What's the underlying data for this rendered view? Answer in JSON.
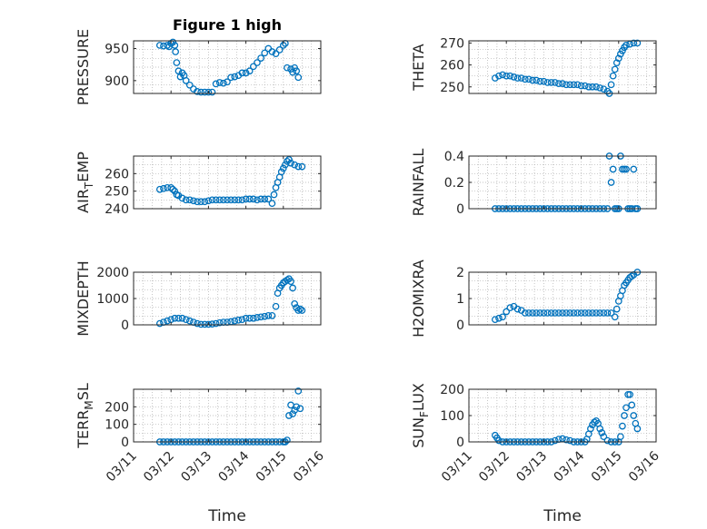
{
  "figure_title": "Figure 1 high",
  "colors": {
    "marker": "#0072BD",
    "axis": "#262626",
    "grid": "#b0b0b0"
  },
  "x_ticks": [
    "03/11",
    "03/12",
    "03/13",
    "03/14",
    "03/15",
    "03/16"
  ],
  "x_label": "Time",
  "chart_data": [
    {
      "type": "scatter",
      "title": "Figure 1 high",
      "ylabel": "PRESSURE",
      "xlim": [
        0,
        5
      ],
      "ylim": [
        880,
        962
      ],
      "yticks": [
        900,
        950
      ],
      "grid": "on",
      "x": [
        0.7,
        0.8,
        0.9,
        0.95,
        1.0,
        1.05,
        1.1,
        1.12,
        1.15,
        1.2,
        1.25,
        1.3,
        1.35,
        1.4,
        1.5,
        1.6,
        1.7,
        1.8,
        1.9,
        2.0,
        2.1,
        2.2,
        2.3,
        2.4,
        2.5,
        2.6,
        2.7,
        2.8,
        2.9,
        3.0,
        3.1,
        3.2,
        3.3,
        3.4,
        3.5,
        3.6,
        3.7,
        3.8,
        3.9,
        4.0,
        4.05,
        4.1,
        4.2,
        4.25,
        4.3,
        4.35,
        4.4
      ],
      "y": [
        955,
        954,
        955,
        953,
        958,
        960,
        955,
        945,
        928,
        915,
        906,
        912,
        908,
        900,
        893,
        887,
        883,
        882,
        882,
        882,
        882,
        895,
        897,
        896,
        898,
        905,
        906,
        908,
        912,
        912,
        915,
        922,
        928,
        935,
        943,
        950,
        945,
        942,
        948,
        955,
        958,
        920,
        918,
        913,
        920,
        915,
        905
      ]
    },
    {
      "type": "scatter",
      "title": "",
      "ylabel": "THETA",
      "xlim": [
        0,
        5
      ],
      "ylim": [
        247,
        271
      ],
      "yticks": [
        250,
        260,
        270
      ],
      "grid": "on",
      "x": [
        0.7,
        0.8,
        0.9,
        1.0,
        1.1,
        1.2,
        1.3,
        1.4,
        1.5,
        1.6,
        1.7,
        1.8,
        1.9,
        2.0,
        2.1,
        2.2,
        2.3,
        2.4,
        2.5,
        2.6,
        2.7,
        2.8,
        2.9,
        3.0,
        3.1,
        3.2,
        3.3,
        3.4,
        3.5,
        3.6,
        3.7,
        3.75,
        3.8,
        3.85,
        3.9,
        3.95,
        4.0,
        4.05,
        4.1,
        4.15,
        4.2,
        4.3,
        4.4,
        4.5
      ],
      "y": [
        254,
        255,
        255.5,
        255,
        255,
        254.5,
        254,
        254,
        253.5,
        253.5,
        253,
        253,
        252.5,
        252.5,
        252,
        252,
        252,
        251.5,
        251.5,
        251,
        251,
        251,
        251,
        250.5,
        250.5,
        250,
        250,
        250,
        249.5,
        249,
        248,
        247,
        251,
        255,
        258,
        261,
        263,
        265,
        266.5,
        268,
        269,
        269.5,
        270,
        270
      ]
    },
    {
      "type": "scatter",
      "title": "",
      "ylabel": "AIR_TEMP",
      "xlim": [
        0,
        5
      ],
      "ylim": [
        240,
        270
      ],
      "yticks": [
        240,
        250,
        260
      ],
      "grid": "on",
      "x": [
        0.7,
        0.8,
        0.9,
        1.0,
        1.05,
        1.1,
        1.15,
        1.2,
        1.3,
        1.4,
        1.5,
        1.6,
        1.7,
        1.8,
        1.9,
        2.0,
        2.1,
        2.2,
        2.3,
        2.4,
        2.5,
        2.6,
        2.7,
        2.8,
        2.9,
        3.0,
        3.1,
        3.2,
        3.3,
        3.4,
        3.5,
        3.6,
        3.7,
        3.75,
        3.8,
        3.85,
        3.9,
        3.95,
        4.0,
        4.05,
        4.1,
        4.15,
        4.2,
        4.3,
        4.4,
        4.5
      ],
      "y": [
        251,
        251.5,
        252,
        252,
        251,
        250,
        248,
        247.5,
        246,
        245,
        245,
        244.5,
        244,
        244,
        244,
        244.5,
        245,
        245,
        245,
        245,
        245,
        245,
        245,
        245,
        245,
        245.5,
        245.5,
        245.5,
        245,
        245.5,
        245.5,
        245.5,
        243,
        248,
        252,
        255,
        258,
        261,
        263,
        265,
        267,
        268,
        266,
        265,
        264,
        264
      ]
    },
    {
      "type": "scatter",
      "title": "",
      "ylabel": "RAINFALL",
      "xlim": [
        0,
        5
      ],
      "ylim": [
        0,
        0.4
      ],
      "yticks": [
        0,
        0.2,
        0.4
      ],
      "grid": "on",
      "x": [
        0.7,
        0.8,
        0.9,
        1.0,
        1.1,
        1.2,
        1.3,
        1.4,
        1.5,
        1.6,
        1.7,
        1.8,
        1.9,
        2.0,
        2.1,
        2.2,
        2.3,
        2.4,
        2.5,
        2.6,
        2.7,
        2.8,
        2.9,
        3.0,
        3.1,
        3.2,
        3.3,
        3.4,
        3.5,
        3.6,
        3.7,
        3.75,
        3.8,
        3.85,
        3.9,
        3.95,
        4.0,
        4.05,
        4.1,
        4.15,
        4.2,
        4.25,
        4.3,
        4.35,
        4.4,
        4.45,
        4.5
      ],
      "y": [
        0,
        0,
        0,
        0,
        0,
        0,
        0,
        0,
        0,
        0,
        0,
        0,
        0,
        0,
        0,
        0,
        0,
        0,
        0,
        0,
        0,
        0,
        0,
        0,
        0,
        0,
        0,
        0,
        0,
        0,
        0,
        0.4,
        0.2,
        0.3,
        0,
        0,
        0,
        0.4,
        0.3,
        0.3,
        0.3,
        0,
        0,
        0,
        0.3,
        0,
        0
      ]
    },
    {
      "type": "scatter",
      "title": "",
      "ylabel": "MIXDEPTH",
      "xlim": [
        0,
        5
      ],
      "ylim": [
        0,
        2000
      ],
      "yticks": [
        0,
        1000,
        2000
      ],
      "grid": "on",
      "x": [
        0.7,
        0.8,
        0.9,
        1.0,
        1.1,
        1.2,
        1.3,
        1.4,
        1.5,
        1.6,
        1.7,
        1.8,
        1.9,
        2.0,
        2.1,
        2.2,
        2.3,
        2.4,
        2.5,
        2.6,
        2.7,
        2.8,
        2.9,
        3.0,
        3.1,
        3.2,
        3.3,
        3.4,
        3.5,
        3.6,
        3.7,
        3.8,
        3.85,
        3.9,
        3.95,
        4.0,
        4.05,
        4.1,
        4.15,
        4.2,
        4.25,
        4.3,
        4.35,
        4.4,
        4.45,
        4.5
      ],
      "y": [
        50,
        100,
        150,
        200,
        250,
        250,
        250,
        200,
        150,
        100,
        50,
        20,
        20,
        20,
        30,
        50,
        80,
        100,
        100,
        120,
        150,
        180,
        200,
        250,
        250,
        250,
        280,
        300,
        320,
        350,
        350,
        700,
        1200,
        1400,
        1500,
        1600,
        1650,
        1700,
        1750,
        1650,
        1400,
        800,
        650,
        550,
        600,
        550
      ]
    },
    {
      "type": "scatter",
      "title": "",
      "ylabel": "H2OMIXRA",
      "xlim": [
        0,
        5
      ],
      "ylim": [
        0,
        2
      ],
      "yticks": [
        0,
        1,
        2
      ],
      "grid": "on",
      "x": [
        0.7,
        0.8,
        0.9,
        1.0,
        1.1,
        1.2,
        1.3,
        1.4,
        1.5,
        1.6,
        1.7,
        1.8,
        1.9,
        2.0,
        2.1,
        2.2,
        2.3,
        2.4,
        2.5,
        2.6,
        2.7,
        2.8,
        2.9,
        3.0,
        3.1,
        3.2,
        3.3,
        3.4,
        3.5,
        3.6,
        3.7,
        3.8,
        3.9,
        3.95,
        4.0,
        4.05,
        4.1,
        4.15,
        4.2,
        4.25,
        4.3,
        4.35,
        4.4,
        4.5
      ],
      "y": [
        0.2,
        0.25,
        0.3,
        0.5,
        0.65,
        0.7,
        0.6,
        0.55,
        0.45,
        0.45,
        0.45,
        0.45,
        0.45,
        0.45,
        0.45,
        0.45,
        0.45,
        0.45,
        0.45,
        0.45,
        0.45,
        0.45,
        0.45,
        0.45,
        0.45,
        0.45,
        0.45,
        0.45,
        0.45,
        0.45,
        0.45,
        0.45,
        0.3,
        0.6,
        0.9,
        1.1,
        1.3,
        1.5,
        1.6,
        1.7,
        1.8,
        1.85,
        1.9,
        2.0
      ]
    },
    {
      "type": "scatter",
      "title": "",
      "ylabel": "TERR_MSL",
      "xlim": [
        0,
        5
      ],
      "ylim": [
        0,
        300
      ],
      "yticks": [
        0,
        100,
        200
      ],
      "grid": "on",
      "x": [
        0.7,
        0.8,
        0.9,
        1.0,
        1.1,
        1.2,
        1.3,
        1.4,
        1.5,
        1.6,
        1.7,
        1.8,
        1.9,
        2.0,
        2.1,
        2.2,
        2.3,
        2.4,
        2.5,
        2.6,
        2.7,
        2.8,
        2.9,
        3.0,
        3.1,
        3.2,
        3.3,
        3.4,
        3.5,
        3.6,
        3.7,
        3.8,
        3.9,
        4.0,
        4.05,
        4.1,
        4.15,
        4.2,
        4.25,
        4.3,
        4.35,
        4.4,
        4.45
      ],
      "y": [
        0,
        0,
        0,
        0,
        0,
        0,
        0,
        0,
        0,
        0,
        0,
        0,
        0,
        0,
        0,
        0,
        0,
        0,
        0,
        0,
        0,
        0,
        0,
        0,
        0,
        0,
        0,
        0,
        0,
        0,
        0,
        0,
        0,
        0,
        0,
        10,
        150,
        210,
        160,
        180,
        200,
        290,
        190
      ]
    },
    {
      "type": "scatter",
      "title": "",
      "ylabel": "SUN_FLUX",
      "xlim": [
        0,
        5
      ],
      "ylim": [
        0,
        200
      ],
      "yticks": [
        0,
        100,
        200
      ],
      "grid": "on",
      "x": [
        0.7,
        0.75,
        0.8,
        0.9,
        1.0,
        1.1,
        1.2,
        1.3,
        1.4,
        1.5,
        1.6,
        1.7,
        1.8,
        1.9,
        2.0,
        2.1,
        2.2,
        2.3,
        2.4,
        2.5,
        2.6,
        2.7,
        2.8,
        2.9,
        3.0,
        3.1,
        3.15,
        3.2,
        3.25,
        3.3,
        3.35,
        3.4,
        3.45,
        3.5,
        3.55,
        3.6,
        3.7,
        3.8,
        3.9,
        4.0,
        4.05,
        4.1,
        4.15,
        4.2,
        4.25,
        4.3,
        4.35,
        4.4,
        4.45,
        4.5
      ],
      "y": [
        25,
        15,
        5,
        0,
        0,
        0,
        0,
        0,
        0,
        0,
        0,
        0,
        0,
        0,
        0,
        0,
        0,
        5,
        10,
        12,
        8,
        5,
        0,
        0,
        0,
        0,
        10,
        30,
        50,
        65,
        75,
        80,
        70,
        50,
        35,
        20,
        5,
        0,
        0,
        0,
        20,
        60,
        100,
        130,
        180,
        180,
        140,
        100,
        70,
        50
      ]
    }
  ]
}
